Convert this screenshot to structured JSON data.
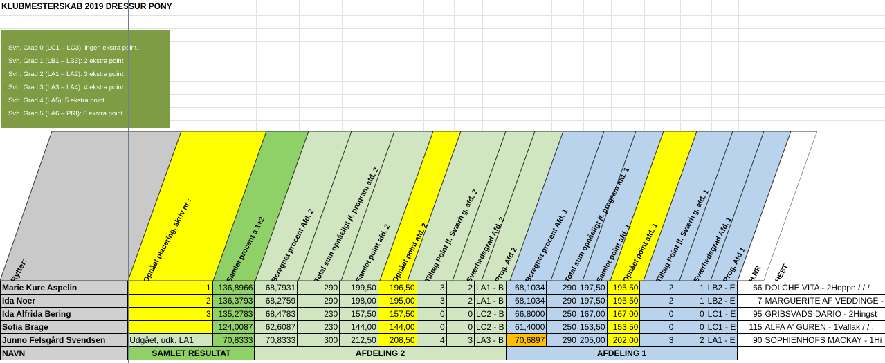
{
  "title": "KLUBMESTERSKAB 2019 DRESSUR PONY",
  "notes": [
    "Svh. Grad 0 (LC1 – LC3): ingen ekstra point.",
    "Svh. Grad 1 (LB1 – LB3): 2 ekstra point",
    "Svh. Grad 2 (LA1 – LA2): 3 ekstra point",
    "Svh. Grad 3 (LA3 – LA4): 4 ekstra point",
    "Svh. Grad 4 (LA5): 5 ekstra point",
    "Svh. Grad 5 (LA6 – PRI): 6 ekstra point"
  ],
  "headers": {
    "rytter": "Rytter:",
    "placering": "Opnået placering, skriv nr :",
    "samlet_procent": "Samlet procent a 1+2",
    "ber_proc_2": "Beregnet procent Afd. 2",
    "total_2": "Total sum opnåeligt jf. program afd. 2",
    "samlet_point_2": "Samlet point afd. 2",
    "opnaet_point_2": "Opnået point afd. 2",
    "tillaeg_2": "Tillæg Point jf. Sværh.g. afd. 2",
    "svaer_2": "Sværhedsgrad Afd. 2",
    "prog_2": "Prog. Afd 2",
    "ber_proc_1": "Beregnet procent Afd. 1",
    "total_1": "Total sum opnåeligt jf. program afd. 1",
    "samlet_point_1": "Samlet point afd. 1",
    "opnaet_point_1": "Opnået point afd. 1",
    "tillaeg_1": "Tillæg Point jf. Sværh.g. afd. 1",
    "svaer_1": "Sværhedsgrad Afd. 1",
    "prog_1": "Prog. Afd 1",
    "hnr": "H.NR",
    "hest": "HEST"
  },
  "rows": [
    {
      "name": "Marie Kure Aspelin",
      "plac": "1",
      "samlet": "136,8966",
      "bp2": "68,7931",
      "tot2": "290",
      "sp2": "199,50",
      "op2": "196,50",
      "til2": "3",
      "sv2": "2",
      "prog2": "LA1 - B",
      "bp1": "68,1034",
      "tot1": "290",
      "sp1": "197,50",
      "op1": "195,50",
      "til1": "2",
      "sv1": "1",
      "prog1": "LB2 - E",
      "hnr": "66",
      "hest": "DOLCHE VITA - 2Hoppe / / /"
    },
    {
      "name": "Ida Noer",
      "plac": "2",
      "samlet": "136,3793",
      "bp2": "68,2759",
      "tot2": "290",
      "sp2": "198,00",
      "op2": "195,00",
      "til2": "3",
      "sv2": "2",
      "prog2": "LA1 - B",
      "bp1": "68,1034",
      "tot1": "290",
      "sp1": "197,50",
      "op1": "195,50",
      "til1": "2",
      "sv1": "1",
      "prog1": "LB2 - E",
      "hnr": "7",
      "hest": "MARGUERITE AF VEDDINGE -"
    },
    {
      "name": "Ida Alfrida Bering",
      "plac": "3",
      "samlet": "135,2783",
      "bp2": "68,4783",
      "tot2": "230",
      "sp2": "157,50",
      "op2": "157,50",
      "til2": "0",
      "sv2": "0",
      "prog2": "LC2 - B",
      "bp1": "66,8000",
      "tot1": "250",
      "sp1": "167,00",
      "op1": "167,00",
      "til1": "0",
      "sv1": "0",
      "prog1": "LC1 - E",
      "hnr": "95",
      "hest": "GRIBSVADS DARIO - 2Hingst"
    },
    {
      "name": "Sofia Brage",
      "plac": "",
      "samlet": "124,0087",
      "bp2": "62,6087",
      "tot2": "230",
      "sp2": "144,00",
      "op2": "144,00",
      "til2": "0",
      "sv2": "0",
      "prog2": "LC2 - B",
      "bp1": "61,4000",
      "tot1": "250",
      "sp1": "153,50",
      "op1": "153,50",
      "til1": "0",
      "sv1": "0",
      "prog1": "LC1 - E",
      "hnr": "115",
      "hest": "ALFA A' GUREN - 1Vallak / / ,"
    },
    {
      "name": "Junno Felsgård Svendsen",
      "plac": "Udgået, udk. LA1",
      "samlet": "70,8333",
      "bp2": "70,8333",
      "tot2": "300",
      "sp2": "212,50",
      "op2": "208,50",
      "til2": "4",
      "sv2": "3",
      "prog2": "LA3 - B",
      "bp1": "70,6897",
      "tot1": "290",
      "sp1": "205,00",
      "op1": "202,00",
      "til1": "3",
      "sv1": "2",
      "prog1": "LA1 - E",
      "hnr": "90",
      "hest": "SOPHIENHOFS MACKAY - 1Hi"
    }
  ],
  "footer": {
    "navn": "NAVN",
    "samlet_resultat": "SAMLET RESULTAT",
    "afdeling_2": "AFDELING 2",
    "afdeling_1": "AFDELING 1"
  }
}
